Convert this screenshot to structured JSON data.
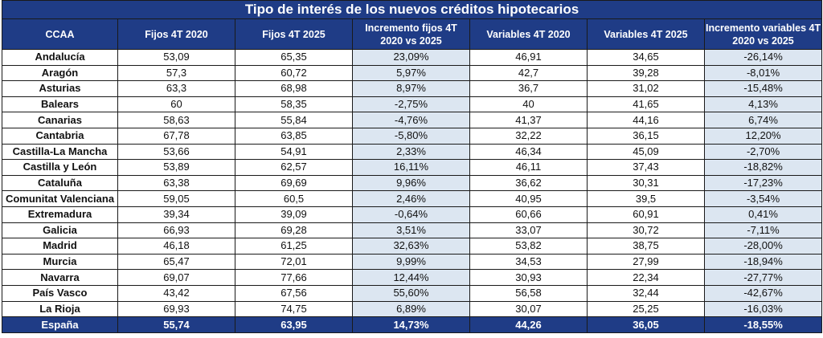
{
  "title": "Tipo de interés de los nuevos créditos hipotecarios",
  "headers": [
    "CCAA",
    "Fijos 4T 2020",
    "Fijos 4T 2025",
    "Incremento fijos 4T 2020 vs 2025",
    "Variables 4T 2020",
    "Variables 4T 2025",
    "Incremento variables 4T 2020 vs 2025"
  ],
  "rows": [
    [
      "Andalucía",
      "53,09",
      "65,35",
      "23,09%",
      "46,91",
      "34,65",
      "-26,14%"
    ],
    [
      "Aragón",
      "57,3",
      "60,72",
      "5,97%",
      "42,7",
      "39,28",
      "-8,01%"
    ],
    [
      "Asturias",
      "63,3",
      "68,98",
      "8,97%",
      "36,7",
      "31,02",
      "-15,48%"
    ],
    [
      "Balears",
      "60",
      "58,35",
      "-2,75%",
      "40",
      "41,65",
      "4,13%"
    ],
    [
      "Canarias",
      "58,63",
      "55,84",
      "-4,76%",
      "41,37",
      "44,16",
      "6,74%"
    ],
    [
      "Cantabria",
      "67,78",
      "63,85",
      "-5,80%",
      "32,22",
      "36,15",
      "12,20%"
    ],
    [
      "Castilla-La Mancha",
      "53,66",
      "54,91",
      "2,33%",
      "46,34",
      "45,09",
      "-2,70%"
    ],
    [
      "Castilla y León",
      "53,89",
      "62,57",
      "16,11%",
      "46,11",
      "37,43",
      "-18,82%"
    ],
    [
      "Cataluña",
      "63,38",
      "69,69",
      "9,96%",
      "36,62",
      "30,31",
      "-17,23%"
    ],
    [
      "Comunitat Valenciana",
      "59,05",
      "60,5",
      "2,46%",
      "40,95",
      "39,5",
      "-3,54%"
    ],
    [
      "Extremadura",
      "39,34",
      "39,09",
      "-0,64%",
      "60,66",
      "60,91",
      "0,41%"
    ],
    [
      "Galicia",
      "66,93",
      "69,28",
      "3,51%",
      "33,07",
      "30,72",
      "-7,11%"
    ],
    [
      "Madrid",
      "46,18",
      "61,25",
      "32,63%",
      "53,82",
      "38,75",
      "-28,00%"
    ],
    [
      "Murcia",
      "65,47",
      "72,01",
      "9,99%",
      "34,53",
      "27,99",
      "-18,94%"
    ],
    [
      "Navarra",
      "69,07",
      "77,66",
      "12,44%",
      "30,93",
      "22,34",
      "-27,77%"
    ],
    [
      "País Vasco",
      "43,42",
      "67,56",
      "55,60%",
      "56,58",
      "32,44",
      "-42,67%"
    ],
    [
      "La Rioja",
      "69,93",
      "74,75",
      "6,89%",
      "30,07",
      "25,25",
      "-16,03%"
    ]
  ],
  "total": [
    "España",
    "55,74",
    "63,95",
    "14,73%",
    "44,26",
    "36,05",
    "-18,55%"
  ],
  "colors": {
    "header_bg": "#1f3c86",
    "header_text": "#ffffff",
    "shade_bg": "#dce6f1"
  }
}
